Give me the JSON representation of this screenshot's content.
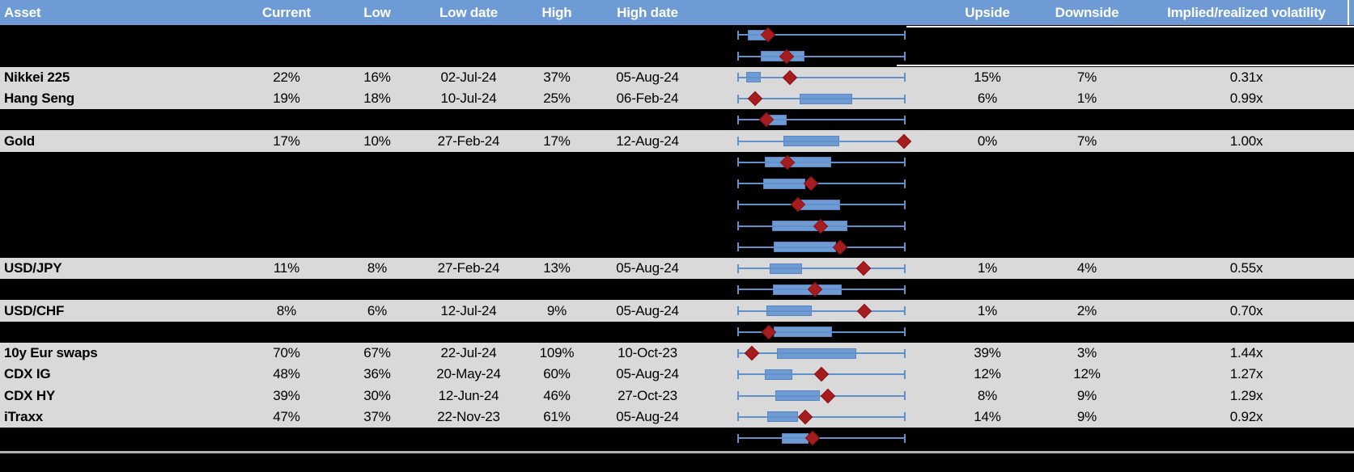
{
  "header": {
    "columns": [
      "Asset",
      "Current",
      "Low",
      "Low date",
      "High",
      "High date",
      "Upside",
      "Downside",
      "Implied/realized volatility"
    ]
  },
  "colors": {
    "background": "#000000",
    "header_bg": "#6e9bd6",
    "header_text": "#ffffff",
    "row_stripe": "#d9d9d9",
    "body_text": "#000000",
    "whisker": "#6190cb",
    "box_fill": "#6f9bd4",
    "box_border": "#5a84bf",
    "diamond_fill": "#a61d20",
    "diamond_border": "#8a1316",
    "separator": "#b3b3b3",
    "gridline": "#ffffff"
  },
  "rows": [
    {
      "kind": "chart",
      "plot": {
        "box": [
          0.058,
          0.17
        ],
        "diamond": 0.18
      }
    },
    {
      "kind": "chart",
      "plot": {
        "box": [
          0.136,
          0.398
        ],
        "diamond": 0.291
      }
    },
    {
      "kind": "data",
      "asset": "Nikkei 225",
      "current": "22%",
      "low": "16%",
      "low_date": "02-Jul-24",
      "high": "37%",
      "high_date": "05-Aug-24",
      "upside": "15%",
      "downside": "7%",
      "vol": "0.31x",
      "plot": {
        "box": [
          0.047,
          0.136
        ],
        "diamond": 0.311
      }
    },
    {
      "kind": "data",
      "asset": "Hang Seng",
      "current": "19%",
      "low": "18%",
      "low_date": "10-Jul-24",
      "high": "25%",
      "high_date": "06-Feb-24",
      "upside": "6%",
      "downside": "1%",
      "vol": "0.99x",
      "plot": {
        "box": [
          0.369,
          0.683
        ],
        "diamond": 0.102
      }
    },
    {
      "kind": "chart",
      "plot": {
        "box": [
          0.184,
          0.29
        ],
        "diamond": 0.17
      }
    },
    {
      "kind": "data",
      "asset": "Gold",
      "current": "17%",
      "low": "10%",
      "low_date": "27-Feb-24",
      "high": "17%",
      "high_date": "12-Aug-24",
      "upside": "0%",
      "downside": "7%",
      "vol": "1.00x",
      "plot": {
        "box": [
          0.272,
          0.605
        ],
        "diamond": 0.995
      }
    },
    {
      "kind": "chart",
      "plot": {
        "box": [
          0.16,
          0.557
        ],
        "diamond": 0.295
      }
    },
    {
      "kind": "chart",
      "plot": {
        "box": [
          0.149,
          0.403
        ],
        "diamond": 0.435
      }
    },
    {
      "kind": "chart",
      "plot": {
        "box": [
          0.37,
          0.61
        ],
        "diamond": 0.359
      }
    },
    {
      "kind": "chart",
      "plot": {
        "box": [
          0.206,
          0.654
        ],
        "diamond": 0.497
      }
    },
    {
      "kind": "chart",
      "plot": {
        "box": [
          0.214,
          0.589
        ],
        "diamond": 0.613
      }
    },
    {
      "kind": "data",
      "asset": "USD/JPY",
      "current": "11%",
      "low": "8%",
      "low_date": "27-Feb-24",
      "high": "13%",
      "high_date": "05-Aug-24",
      "upside": "1%",
      "downside": "4%",
      "vol": "0.55x",
      "plot": {
        "box": [
          0.188,
          0.382
        ],
        "diamond": 0.754
      }
    },
    {
      "kind": "chart",
      "plot": {
        "box": [
          0.209,
          0.621
        ],
        "diamond": 0.463
      }
    },
    {
      "kind": "data",
      "asset": "USD/CHF",
      "current": "8%",
      "low": "6%",
      "low_date": "12-Jul-24",
      "high": "9%",
      "high_date": "05-Aug-24",
      "upside": "1%",
      "downside": "2%",
      "vol": "0.70x",
      "plot": {
        "box": [
          0.168,
          0.44
        ],
        "diamond": 0.756
      }
    },
    {
      "kind": "chart",
      "plot": {
        "box": [
          0.214,
          0.565
        ],
        "diamond": 0.184
      }
    },
    {
      "kind": "data",
      "asset": "10y Eur swaps",
      "current": "70%",
      "low": "67%",
      "low_date": "22-Jul-24",
      "high": "109%",
      "high_date": "10-Oct-23",
      "upside": "39%",
      "downside": "3%",
      "vol": "1.44x",
      "plot": {
        "box": [
          0.233,
          0.71
        ],
        "diamond": 0.084
      }
    },
    {
      "kind": "data",
      "asset": "CDX IG",
      "current": "48%",
      "low": "36%",
      "low_date": "20-May-24",
      "high": "60%",
      "high_date": "05-Aug-24",
      "upside": "12%",
      "downside": "12%",
      "vol": "1.27x",
      "plot": {
        "box": [
          0.16,
          0.327
        ],
        "diamond": 0.5
      }
    },
    {
      "kind": "data",
      "asset": "CDX HY",
      "current": "39%",
      "low": "30%",
      "low_date": "12-Jun-24",
      "high": "46%",
      "high_date": "27-Oct-23",
      "upside": "8%",
      "downside": "9%",
      "vol": "1.29x",
      "plot": {
        "box": [
          0.225,
          0.492
        ],
        "diamond": 0.537
      }
    },
    {
      "kind": "data",
      "asset": "iTraxx",
      "current": "47%",
      "low": "37%",
      "low_date": "22-Nov-23",
      "high": "61%",
      "high_date": "05-Aug-24",
      "upside": "14%",
      "downside": "9%",
      "vol": "0.92x",
      "plot": {
        "box": [
          0.173,
          0.36
        ],
        "diamond": 0.403
      }
    },
    {
      "kind": "chart",
      "plot": {
        "box": [
          0.262,
          0.424
        ],
        "diamond": 0.447
      }
    }
  ],
  "chart_data": {
    "type": "table",
    "columns": [
      "Asset",
      "Current",
      "Low",
      "Low date",
      "High",
      "High date",
      "Upside",
      "Downside",
      "Implied/realized volatility"
    ],
    "rows": [
      [
        "Nikkei 225",
        "22%",
        "16%",
        "02-Jul-24",
        "37%",
        "05-Aug-24",
        "15%",
        "7%",
        "0.31x"
      ],
      [
        "Hang Seng",
        "19%",
        "18%",
        "10-Jul-24",
        "25%",
        "06-Feb-24",
        "6%",
        "1%",
        "0.99x"
      ],
      [
        "Gold",
        "17%",
        "10%",
        "27-Feb-24",
        "17%",
        "12-Aug-24",
        "0%",
        "7%",
        "1.00x"
      ],
      [
        "USD/JPY",
        "11%",
        "8%",
        "27-Feb-24",
        "13%",
        "05-Aug-24",
        "1%",
        "4%",
        "0.55x"
      ],
      [
        "USD/CHF",
        "8%",
        "6%",
        "12-Jul-24",
        "9%",
        "05-Aug-24",
        "1%",
        "2%",
        "0.70x"
      ],
      [
        "10y Eur swaps",
        "70%",
        "67%",
        "22-Jul-24",
        "109%",
        "10-Oct-23",
        "39%",
        "3%",
        "1.44x"
      ],
      [
        "CDX IG",
        "48%",
        "36%",
        "20-May-24",
        "60%",
        "05-Aug-24",
        "12%",
        "12%",
        "1.27x"
      ],
      [
        "CDX HY",
        "39%",
        "30%",
        "12-Jun-24",
        "46%",
        "27-Oct-23",
        "8%",
        "9%",
        "1.29x"
      ],
      [
        "iTraxx",
        "47%",
        "37%",
        "22-Nov-23",
        "61%",
        "05-Aug-24",
        "14%",
        "9%",
        "0.92x"
      ]
    ],
    "embedded_boxplots": {
      "type": "boxplot",
      "orientation": "horizontal",
      "whisker": "low-to-high range, normalized 0-1 per row",
      "marker": "red diamond = current level",
      "per_row_geometry": [
        {
          "box": [
            0.058,
            0.17
          ],
          "diamond": 0.18
        },
        {
          "box": [
            0.136,
            0.398
          ],
          "diamond": 0.291
        },
        {
          "box": [
            0.047,
            0.136
          ],
          "diamond": 0.311
        },
        {
          "box": [
            0.369,
            0.683
          ],
          "diamond": 0.102
        },
        {
          "box": [
            0.184,
            0.29
          ],
          "diamond": 0.17
        },
        {
          "box": [
            0.272,
            0.605
          ],
          "diamond": 0.995
        },
        {
          "box": [
            0.16,
            0.557
          ],
          "diamond": 0.295
        },
        {
          "box": [
            0.149,
            0.403
          ],
          "diamond": 0.435
        },
        {
          "box": [
            0.37,
            0.61
          ],
          "diamond": 0.359
        },
        {
          "box": [
            0.206,
            0.654
          ],
          "diamond": 0.497
        },
        {
          "box": [
            0.214,
            0.589
          ],
          "diamond": 0.613
        },
        {
          "box": [
            0.188,
            0.382
          ],
          "diamond": 0.754
        },
        {
          "box": [
            0.209,
            0.621
          ],
          "diamond": 0.463
        },
        {
          "box": [
            0.168,
            0.44
          ],
          "diamond": 0.756
        },
        {
          "box": [
            0.214,
            0.565
          ],
          "diamond": 0.184
        },
        {
          "box": [
            0.233,
            0.71
          ],
          "diamond": 0.084
        },
        {
          "box": [
            0.16,
            0.327
          ],
          "diamond": 0.5
        },
        {
          "box": [
            0.225,
            0.492
          ],
          "diamond": 0.537
        },
        {
          "box": [
            0.173,
            0.36
          ],
          "diamond": 0.403
        },
        {
          "box": [
            0.262,
            0.424
          ],
          "diamond": 0.447
        }
      ]
    }
  }
}
